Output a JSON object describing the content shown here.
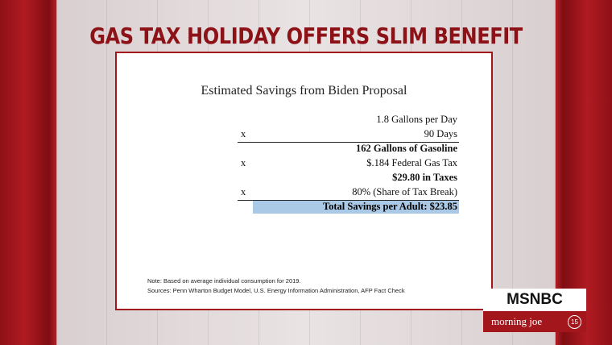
{
  "headline": "GAS TAX HOLIDAY OFFERS SLIM BENEFIT",
  "card": {
    "title": "Estimated Savings from Biden Proposal",
    "rows": [
      {
        "text": "1.8 Gallons per Day"
      },
      {
        "prefix": "x",
        "text": "90 Days",
        "rule_below": true
      },
      {
        "text": "162 Gallons of Gasoline",
        "bold": true
      },
      {
        "prefix": "x",
        "text": "$.184 Federal Gas Tax"
      },
      {
        "text": "$29.80 in Taxes",
        "bold": true
      },
      {
        "prefix": "x",
        "text": "80% (Share of Tax Break)",
        "rule_below": true
      }
    ],
    "total": "Total Savings per Adult: $23.85",
    "notes": [
      "Note: Based on average individual consumption for 2019.",
      "Sources: Penn Wharton Budget Model, U.S. Energy Information Administration, AFP Fact Check"
    ]
  },
  "logo": {
    "network": "MSNBC",
    "show": "morning joe",
    "badge": "15"
  }
}
